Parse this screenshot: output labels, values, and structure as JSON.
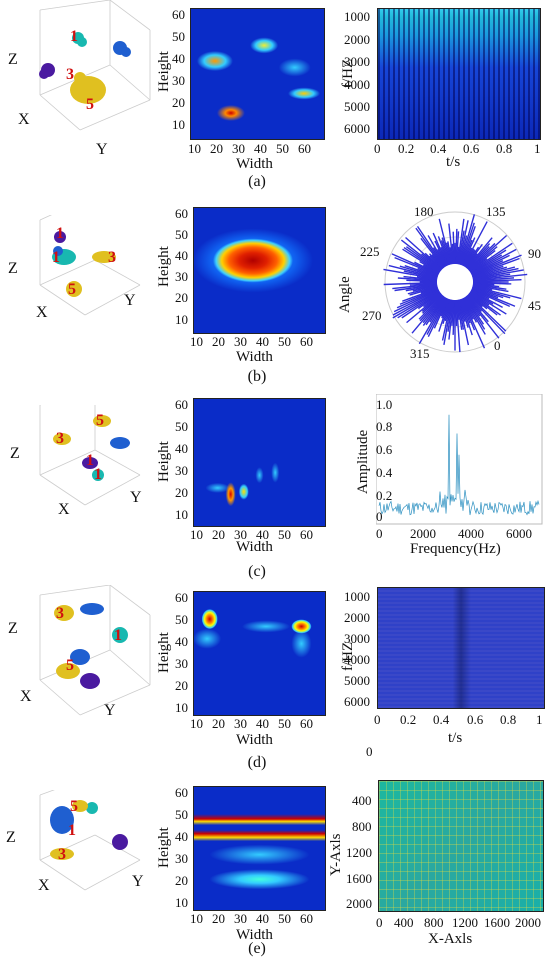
{
  "colors": {
    "red": "#d01010",
    "blue": "#1f5fd0",
    "cyan": "#18b8b0",
    "yellow": "#e0c020",
    "purple": "#4a1aa0"
  },
  "axes3d": {
    "z": "Z",
    "x": "X",
    "y": "Y"
  },
  "heat": {
    "ylabel": "Height",
    "xlabel": "Width",
    "yticks": [
      "60",
      "50",
      "40",
      "30",
      "20",
      "10"
    ],
    "xticks": [
      "10",
      "20",
      "30",
      "40",
      "50",
      "60"
    ]
  },
  "rows": [
    {
      "caption": "(a)",
      "clusters": [
        "1",
        "3",
        "5"
      ],
      "right": {
        "ylabel": "f/HZ",
        "xlabel": "t/s",
        "yticks": [
          "1000",
          "2000",
          "3000",
          "4000",
          "5000",
          "6000"
        ],
        "xticks": [
          "0",
          "0.2",
          "0.4",
          "0.6",
          "0.8",
          "1"
        ]
      }
    },
    {
      "caption": "(b)",
      "clusters": [
        "1",
        "3",
        "5",
        "1"
      ],
      "right": {
        "ylabel": "Angle",
        "angles": [
          "180",
          "135",
          "90",
          "45",
          "0",
          "315",
          "270",
          "225"
        ]
      }
    },
    {
      "caption": "(c)",
      "clusters": [
        "3",
        "5",
        "1",
        "1"
      ],
      "right": {
        "ylabel": "Amplitude",
        "xlabel": "Frequency(Hz)",
        "yticks": [
          "1.0",
          "0.8",
          "0.6",
          "0.4",
          "0.2",
          "0"
        ],
        "xticks": [
          "0",
          "2000",
          "4000",
          "6000"
        ]
      }
    },
    {
      "caption": "(d)",
      "clusters": [
        "3",
        "5",
        "1"
      ],
      "right": {
        "ylabel": "f/HZ",
        "xlabel": "t/s",
        "yticks": [
          "1000",
          "2000",
          "3000",
          "4000",
          "5000",
          "6000"
        ],
        "xticks": [
          "0",
          "0.2",
          "0.4",
          "0.6",
          "0.8",
          "1"
        ],
        "extra": "0"
      }
    },
    {
      "caption": "(e)",
      "clusters": [
        "5",
        "1",
        "3"
      ],
      "right": {
        "ylabel": "Y-Axls",
        "xlabel": "X-Axls",
        "yticks": [
          "400",
          "800",
          "1200",
          "1600",
          "2000"
        ],
        "xticks": [
          "0",
          "400",
          "800",
          "1200",
          "1600",
          "2000"
        ]
      }
    }
  ]
}
